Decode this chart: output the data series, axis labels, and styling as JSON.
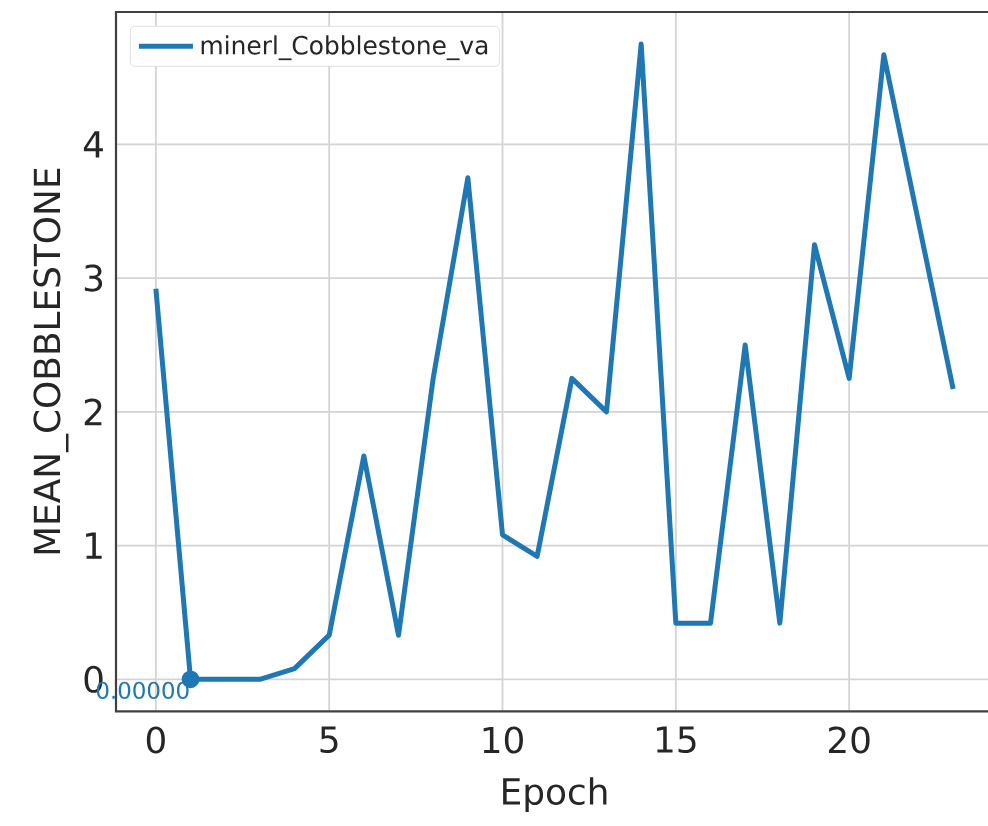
{
  "chart_data": {
    "type": "line",
    "xlabel": "Epoch",
    "ylabel": "MEAN_COBBLESTONE",
    "x": [
      0,
      1,
      2,
      3,
      4,
      5,
      6,
      7,
      8,
      9,
      10,
      11,
      12,
      13,
      14,
      15,
      16,
      17,
      18,
      19,
      20,
      21,
      22,
      23
    ],
    "series": [
      {
        "name": "minerl_Cobblestone_va",
        "color": "#1f77b4",
        "values": [
          2.92,
          0,
          0,
          0,
          0.08,
          0.33,
          1.67,
          0.33,
          2.25,
          3.75,
          1.08,
          0.92,
          2.25,
          2.0,
          4.75,
          0.42,
          0.42,
          2.5,
          0.42,
          3.25,
          2.25,
          4.67,
          3.42,
          2.17
        ]
      },
      {
        "type": "scatter",
        "marker": "circle",
        "color": "#1f77b4",
        "x": [
          1
        ],
        "values": [
          0
        ]
      }
    ],
    "annotations": [
      {
        "text": "0.00000",
        "x": 1,
        "y": 0
      }
    ],
    "xlim": [
      -1.15,
      24.15
    ],
    "ylim": [
      -0.24,
      4.99
    ],
    "xticks": [
      0,
      5,
      10,
      15,
      20
    ],
    "yticks": [
      0,
      1,
      2,
      3,
      4
    ],
    "grid": true,
    "legend": "top left",
    "line_style": "solid"
  }
}
